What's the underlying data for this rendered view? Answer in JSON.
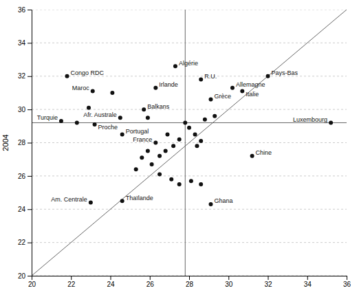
{
  "chart_data": {
    "type": "scatter",
    "ylabel": "2004",
    "xlim": [
      20,
      36
    ],
    "ylim": [
      20,
      36
    ],
    "xticks": [
      20,
      22,
      24,
      26,
      28,
      30,
      32,
      34,
      36
    ],
    "yticks": [
      20,
      22,
      24,
      26,
      28,
      30,
      32,
      34,
      36
    ],
    "grid": "y",
    "color": "#111111",
    "x": [
      21.8,
      23.1,
      24.1,
      26.3,
      27.3,
      28.6,
      30.2,
      30.7,
      29.1,
      32.0,
      21.5,
      22.3,
      23.2,
      22.9,
      24.5,
      25.7,
      25.9,
      24.6,
      26.3,
      35.2,
      31.2,
      23.0,
      24.6,
      29.1,
      26.5,
      26.8,
      27.2,
      27.5,
      27.8,
      28.0,
      28.3,
      28.4,
      28.6,
      28.8,
      29.3,
      26.1,
      26.5,
      27.1,
      27.5,
      28.1,
      28.6,
      25.6,
      25.9,
      26.9,
      25.3
    ],
    "values": [
      32.0,
      31.1,
      31.0,
      31.3,
      32.6,
      31.8,
      31.3,
      31.1,
      30.6,
      32.0,
      29.3,
      29.2,
      29.1,
      30.1,
      29.5,
      30.0,
      29.5,
      28.5,
      28.0,
      29.2,
      27.2,
      24.4,
      24.5,
      24.3,
      27.2,
      27.5,
      27.8,
      28.2,
      29.2,
      28.9,
      28.5,
      27.8,
      28.1,
      29.4,
      29.6,
      26.7,
      26.1,
      25.8,
      25.5,
      25.7,
      25.5,
      27.1,
      27.5,
      28.5,
      26.4
    ],
    "labels": [
      "Congo RDC",
      "Maroc",
      null,
      "Irlande",
      "Algérie",
      "R.U.",
      "Allemagne",
      "Italie",
      "Grèce",
      "Pays-Bas",
      "Turquie",
      null,
      "Proche",
      null,
      "Afr. Australe",
      "Balkans",
      null,
      "Portugal",
      "France",
      "Luxembourg",
      "Chine",
      "Am. Centrale",
      "Thaïlande",
      "Ghana",
      null,
      null,
      null,
      null,
      null,
      null,
      null,
      null,
      null,
      null,
      null,
      null,
      null,
      null,
      null,
      null,
      null,
      null,
      null,
      null,
      null
    ],
    "vline_x": 27.8,
    "hline_y": 29.2,
    "ref_line": {
      "x": [
        20,
        36
      ],
      "values": [
        20,
        36
      ]
    }
  }
}
